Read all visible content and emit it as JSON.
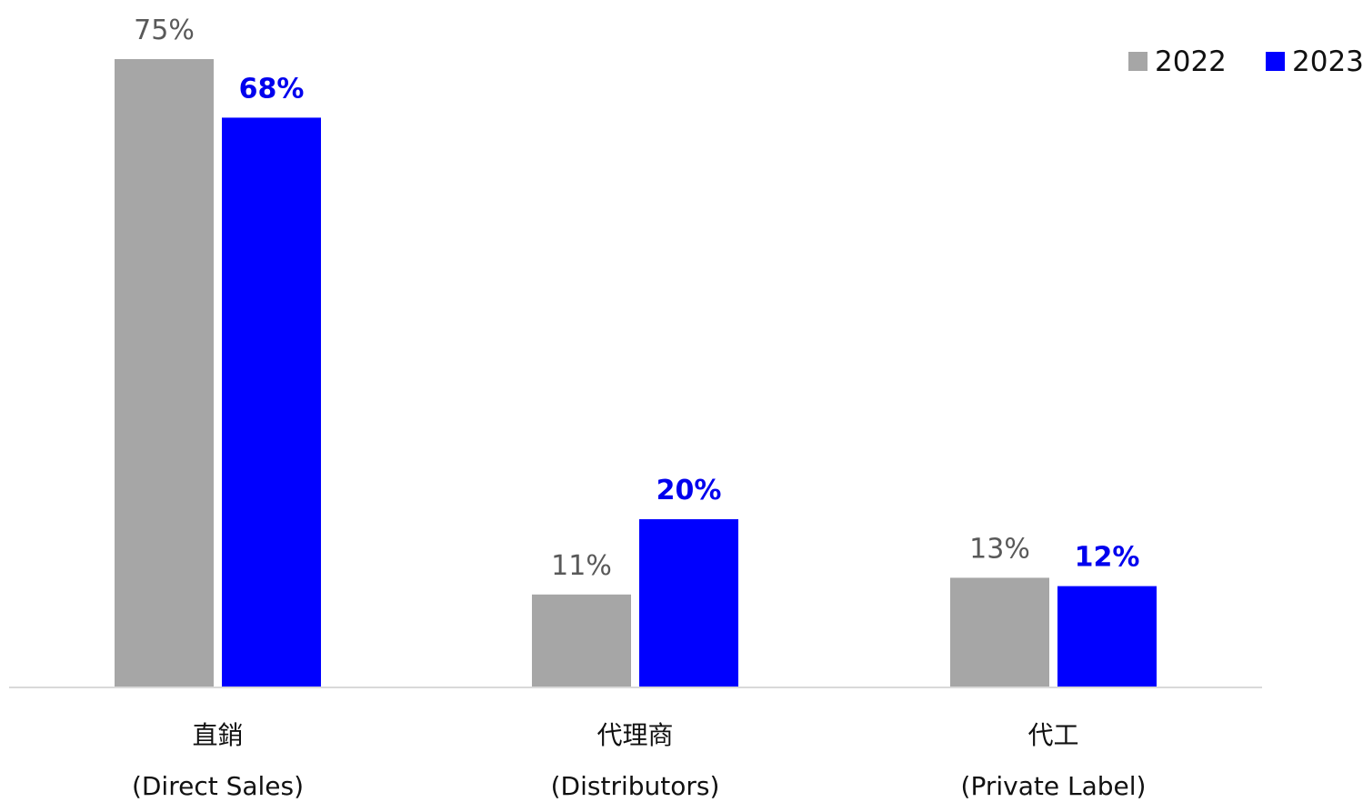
{
  "chart_data": {
    "type": "bar",
    "title": "",
    "xlabel": "",
    "ylabel": "",
    "ylim": [
      0,
      80
    ],
    "grid": false,
    "legend_position": "top-right",
    "categories": [
      {
        "line1": "直銷",
        "line2": "(Direct Sales)"
      },
      {
        "line1": "代理商",
        "line2": "(Distributors)"
      },
      {
        "line1": "代工",
        "line2": "(Private Label)"
      }
    ],
    "series": [
      {
        "name": "2022",
        "color": "#a6a6a6",
        "label_color": "#595959",
        "label_bold": false,
        "values": [
          75,
          11,
          13
        ],
        "labels": [
          "75%",
          "11%",
          "13%"
        ]
      },
      {
        "name": "2023",
        "color": "#0000ff",
        "label_color": "#0000ee",
        "label_bold": true,
        "values": [
          68,
          20,
          12
        ],
        "labels": [
          "68%",
          "20%",
          "12%"
        ]
      }
    ]
  }
}
